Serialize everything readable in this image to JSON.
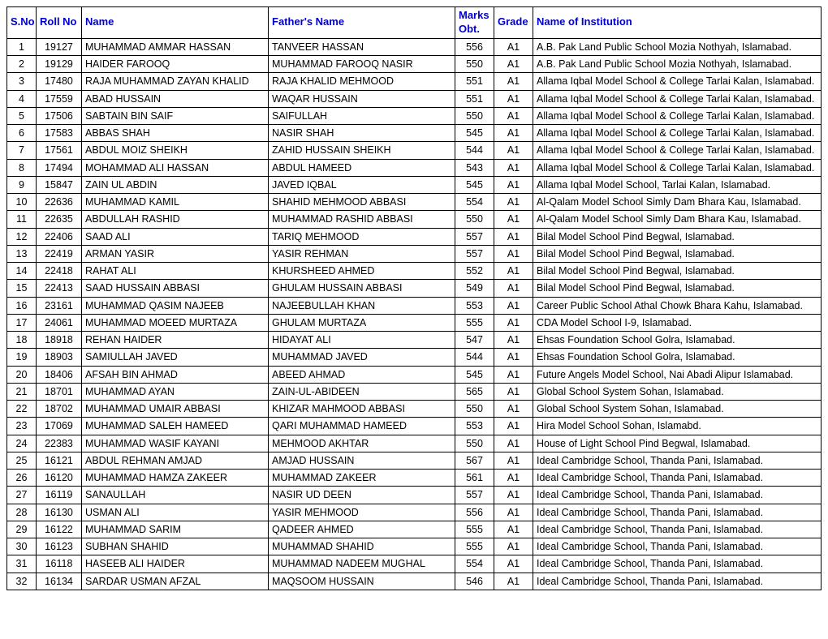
{
  "columns": {
    "sno": "S.No",
    "roll": "Roll No",
    "name": "Name",
    "father": "Father's Name",
    "marks": "Marks Obt.",
    "grade": "Grade",
    "institution": "Name of Institution"
  },
  "rows": [
    {
      "sno": "1",
      "roll": "19127",
      "name": "MUHAMMAD AMMAR HASSAN",
      "father": "TANVEER HASSAN",
      "marks": "556",
      "grade": "A1",
      "inst": "A.B. Pak Land Public School Mozia Nothyah, Islamabad."
    },
    {
      "sno": "2",
      "roll": "19129",
      "name": "HAIDER FAROOQ",
      "father": "MUHAMMAD FAROOQ NASIR",
      "marks": "550",
      "grade": "A1",
      "inst": "A.B. Pak Land Public School Mozia Nothyah, Islamabad."
    },
    {
      "sno": "3",
      "roll": "17480",
      "name": "RAJA MUHAMMAD ZAYAN KHALID",
      "father": "RAJA KHALID MEHMOOD",
      "marks": "551",
      "grade": "A1",
      "inst": "Allama Iqbal Model School & College Tarlai Kalan, Islamabad."
    },
    {
      "sno": "4",
      "roll": "17559",
      "name": "ABAD HUSSAIN",
      "father": "WAQAR HUSSAIN",
      "marks": "551",
      "grade": "A1",
      "inst": "Allama Iqbal Model School & College Tarlai Kalan, Islamabad."
    },
    {
      "sno": "5",
      "roll": "17506",
      "name": "SABTAIN BIN SAIF",
      "father": "SAIFULLAH",
      "marks": "550",
      "grade": "A1",
      "inst": "Allama Iqbal Model School & College Tarlai Kalan, Islamabad."
    },
    {
      "sno": "6",
      "roll": "17583",
      "name": "ABBAS SHAH",
      "father": "NASIR SHAH",
      "marks": "545",
      "grade": "A1",
      "inst": "Allama Iqbal Model School & College Tarlai Kalan, Islamabad."
    },
    {
      "sno": "7",
      "roll": "17561",
      "name": "ABDUL MOIZ SHEIKH",
      "father": "ZAHID HUSSAIN SHEIKH",
      "marks": "544",
      "grade": "A1",
      "inst": "Allama Iqbal Model School & College Tarlai Kalan, Islamabad."
    },
    {
      "sno": "8",
      "roll": "17494",
      "name": "MOHAMMAD ALI HASSAN",
      "father": "ABDUL HAMEED",
      "marks": "543",
      "grade": "A1",
      "inst": "Allama Iqbal Model School & College Tarlai Kalan, Islamabad."
    },
    {
      "sno": "9",
      "roll": "15847",
      "name": "ZAIN UL ABDIN",
      "father": "JAVED IQBAL",
      "marks": "545",
      "grade": "A1",
      "inst": "Allama Iqbal Model School, Tarlai Kalan, Islamabad."
    },
    {
      "sno": "10",
      "roll": "22636",
      "name": "MUHAMMAD KAMIL",
      "father": "SHAHID MEHMOOD ABBASI",
      "marks": "554",
      "grade": "A1",
      "inst": "Al-Qalam Model School Simly Dam Bhara Kau, Islamabad."
    },
    {
      "sno": "11",
      "roll": "22635",
      "name": "ABDULLAH RASHID",
      "father": "MUHAMMAD RASHID ABBASI",
      "marks": "550",
      "grade": "A1",
      "inst": "Al-Qalam Model School Simly Dam Bhara Kau, Islamabad."
    },
    {
      "sno": "12",
      "roll": "22406",
      "name": "SAAD ALI",
      "father": "TARIQ MEHMOOD",
      "marks": "557",
      "grade": "A1",
      "inst": "Bilal Model School Pind Begwal, Islamabad."
    },
    {
      "sno": "13",
      "roll": "22419",
      "name": "ARMAN YASIR",
      "father": "YASIR REHMAN",
      "marks": "557",
      "grade": "A1",
      "inst": "Bilal Model School Pind Begwal, Islamabad."
    },
    {
      "sno": "14",
      "roll": "22418",
      "name": "RAHAT ALI",
      "father": "KHURSHEED AHMED",
      "marks": "552",
      "grade": "A1",
      "inst": "Bilal Model School Pind Begwal, Islamabad."
    },
    {
      "sno": "15",
      "roll": "22413",
      "name": "SAAD HUSSAIN ABBASI",
      "father": "GHULAM HUSSAIN ABBASI",
      "marks": "549",
      "grade": "A1",
      "inst": "Bilal Model School Pind Begwal, Islamabad."
    },
    {
      "sno": "16",
      "roll": "23161",
      "name": "MUHAMMAD QASIM NAJEEB",
      "father": "NAJEEBULLAH KHAN",
      "marks": "553",
      "grade": "A1",
      "inst": "Career Public School Athal Chowk Bhara Kahu, Islamabad."
    },
    {
      "sno": "17",
      "roll": "24061",
      "name": "MUHAMMAD MOEED MURTAZA",
      "father": "GHULAM MURTAZA",
      "marks": "555",
      "grade": "A1",
      "inst": "CDA Model School I-9, Islamabad."
    },
    {
      "sno": "18",
      "roll": "18918",
      "name": "REHAN HAIDER",
      "father": "HIDAYAT ALI",
      "marks": "547",
      "grade": "A1",
      "inst": "Ehsas Foundation School Golra, Islamabad."
    },
    {
      "sno": "19",
      "roll": "18903",
      "name": "SAMIULLAH JAVED",
      "father": "MUHAMMAD JAVED",
      "marks": "544",
      "grade": "A1",
      "inst": "Ehsas Foundation School Golra, Islamabad."
    },
    {
      "sno": "20",
      "roll": "18406",
      "name": "AFSAH BIN AHMAD",
      "father": "ABEED AHMAD",
      "marks": "545",
      "grade": "A1",
      "inst": "Future Angels Model School, Nai Abadi Alipur Islamabad."
    },
    {
      "sno": "21",
      "roll": "18701",
      "name": "MUHAMMAD AYAN",
      "father": "ZAIN-UL-ABIDEEN",
      "marks": "565",
      "grade": "A1",
      "inst": "Global School System Sohan, Islamabad."
    },
    {
      "sno": "22",
      "roll": "18702",
      "name": "MUHAMMAD UMAIR ABBASI",
      "father": "KHIZAR MAHMOOD ABBASI",
      "marks": "550",
      "grade": "A1",
      "inst": "Global School System Sohan, Islamabad."
    },
    {
      "sno": "23",
      "roll": "17069",
      "name": "MUHAMMAD SALEH HAMEED",
      "father": "QARI MUHAMMAD HAMEED",
      "marks": "553",
      "grade": "A1",
      "inst": "Hira Model School Sohan, Islamabd."
    },
    {
      "sno": "24",
      "roll": "22383",
      "name": "MUHAMMAD WASIF KAYANI",
      "father": "MEHMOOD AKHTAR",
      "marks": "550",
      "grade": "A1",
      "inst": "House of Light School Pind Begwal, Islamabad."
    },
    {
      "sno": "25",
      "roll": "16121",
      "name": "ABDUL REHMAN AMJAD",
      "father": "AMJAD HUSSAIN",
      "marks": "567",
      "grade": "A1",
      "inst": "Ideal Cambridge School, Thanda Pani, Islamabad."
    },
    {
      "sno": "26",
      "roll": "16120",
      "name": "MUHAMMAD HAMZA ZAKEER",
      "father": "MUHAMMAD ZAKEER",
      "marks": "561",
      "grade": "A1",
      "inst": "Ideal Cambridge School, Thanda Pani, Islamabad."
    },
    {
      "sno": "27",
      "roll": "16119",
      "name": "SANAULLAH",
      "father": "NASIR UD DEEN",
      "marks": "557",
      "grade": "A1",
      "inst": "Ideal Cambridge School, Thanda Pani, Islamabad."
    },
    {
      "sno": "28",
      "roll": "16130",
      "name": "USMAN ALI",
      "father": "YASIR MEHMOOD",
      "marks": "556",
      "grade": "A1",
      "inst": "Ideal Cambridge School, Thanda Pani, Islamabad."
    },
    {
      "sno": "29",
      "roll": "16122",
      "name": "MUHAMMAD SARIM",
      "father": "QADEER AHMED",
      "marks": "555",
      "grade": "A1",
      "inst": "Ideal Cambridge School, Thanda Pani, Islamabad."
    },
    {
      "sno": "30",
      "roll": "16123",
      "name": "SUBHAN SHAHID",
      "father": "MUHAMMAD SHAHID",
      "marks": "555",
      "grade": "A1",
      "inst": "Ideal Cambridge School, Thanda Pani, Islamabad."
    },
    {
      "sno": "31",
      "roll": "16118",
      "name": "HASEEB ALI HAIDER",
      "father": "MUHAMMAD NADEEM MUGHAL",
      "marks": "554",
      "grade": "A1",
      "inst": "Ideal Cambridge School, Thanda Pani, Islamabad."
    },
    {
      "sno": "32",
      "roll": "16134",
      "name": "SARDAR USMAN AFZAL",
      "father": "MAQSOOM HUSSAIN",
      "marks": "546",
      "grade": "A1",
      "inst": "Ideal Cambridge School, Thanda Pani, Islamabad."
    }
  ]
}
